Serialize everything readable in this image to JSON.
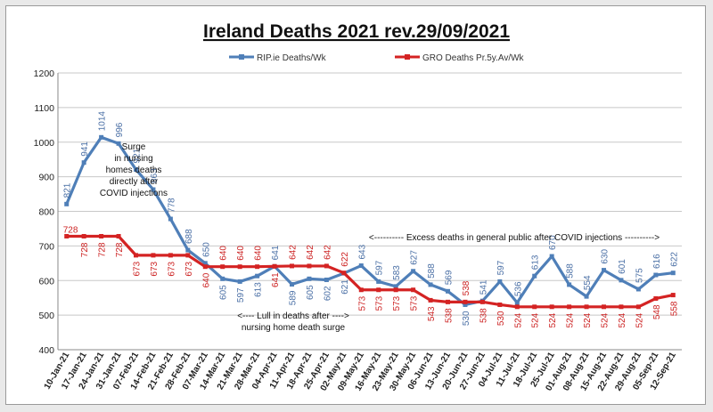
{
  "chart_data": {
    "type": "line",
    "title": "Ireland Deaths 2021 rev.29/09/2021",
    "ylim": [
      400,
      1200
    ],
    "yticks": [
      400,
      500,
      600,
      700,
      800,
      900,
      1000,
      1100,
      1200
    ],
    "grid": "horizontal",
    "legend_position": "top",
    "categories": [
      "10-Jan-21",
      "17-Jan-21",
      "24-Jan-21",
      "31-Jan-21",
      "07-Feb-21",
      "14-Feb-21",
      "21-Feb-21",
      "28-Feb-21",
      "07-Mar-21",
      "14-Mar-21",
      "21-Mar-21",
      "28-Mar-21",
      "04-Apr-21",
      "11-Apr-21",
      "18-Apr-21",
      "25-Apr-21",
      "02-May-21",
      "09-May-21",
      "16-May-21",
      "23-May-21",
      "30-May-21",
      "06-Jun-21",
      "13-Jun-21",
      "20-Jun-21",
      "27-Jun-21",
      "04-Jul-21",
      "11-Jul-21",
      "18-Jul-21",
      "25-Jul-21",
      "01-Aug-21",
      "08-Aug-21",
      "15-Aug-21",
      "22-Aug-21",
      "29-Aug-21",
      "05-Sep-21",
      "12-Sep-21"
    ],
    "series": [
      {
        "name": "RIP.ie Deaths/Wk",
        "color": "#4f7fb8",
        "values": [
          821,
          941,
          1014,
          996,
          921,
          863,
          778,
          688,
          650,
          605,
          597,
          613,
          641,
          589,
          605,
          602,
          621,
          643,
          597,
          583,
          627,
          588,
          569,
          530,
          541,
          597,
          536,
          613,
          670,
          588,
          554,
          630,
          601,
          575,
          616,
          622
        ]
      },
      {
        "name": "GRO Deaths Pr.5y.Av/Wk",
        "color": "#d42323",
        "values": [
          728,
          728,
          728,
          728,
          673,
          673,
          673,
          673,
          640,
          640,
          640,
          640,
          641,
          642,
          642,
          642,
          622,
          573,
          573,
          573,
          573,
          543,
          538,
          538,
          538,
          530,
          524,
          524,
          524,
          524,
          524,
          524,
          524,
          524,
          548,
          558
        ]
      }
    ],
    "annotations": {
      "surge": [
        "Surge",
        "in nursing",
        "homes deaths",
        "directly after",
        "COVID injections"
      ],
      "excess": "<----------  Excess deaths in general public after COVID injections  ---------->",
      "lull": [
        "<---- Lull in deaths after ---->",
        "nursing home death surge"
      ]
    }
  }
}
